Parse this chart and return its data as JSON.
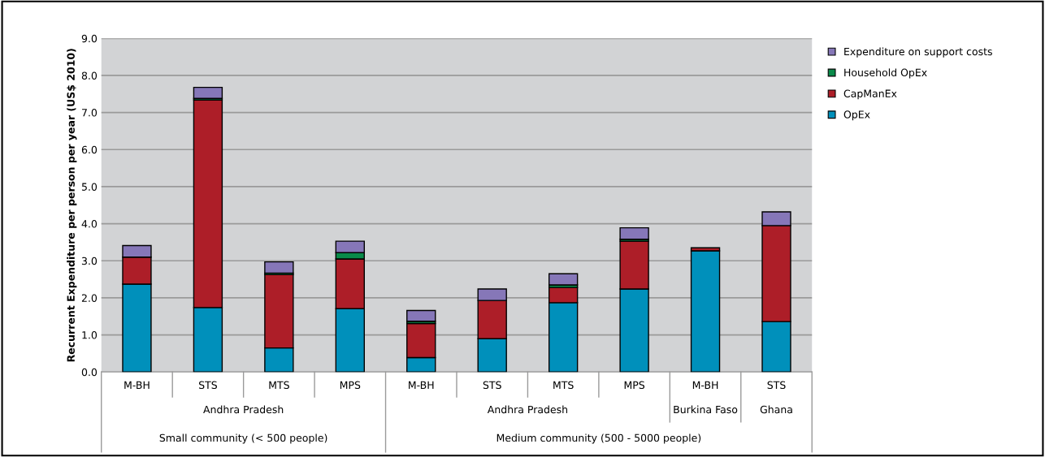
{
  "chart_data": {
    "type": "bar",
    "stacked": true,
    "ylabel": "Recurrent Expenditure per person per year (US$ 2010)",
    "categories": [
      "M-BH",
      "STS",
      "MTS",
      "MPS",
      "M-BH",
      "STS",
      "MTS",
      "MPS",
      "M-BH",
      "STS"
    ],
    "series": [
      {
        "name": "OpEx",
        "color": "#0090bb",
        "values": [
          2.37,
          1.74,
          0.65,
          1.71,
          0.39,
          0.9,
          1.87,
          2.24,
          3.27,
          1.36
        ]
      },
      {
        "name": "CapManEx",
        "color": "#ad1e28",
        "values": [
          0.73,
          5.6,
          1.98,
          1.34,
          0.92,
          1.03,
          0.41,
          1.29,
          0.08,
          2.59
        ]
      },
      {
        "name": "Household OpEx",
        "color": "#0a8a4a",
        "values": [
          null,
          0.04,
          0.04,
          0.17,
          0.06,
          null,
          0.07,
          0.05,
          null,
          null
        ]
      },
      {
        "name": "Expenditure on support costs",
        "color": "#8677b8",
        "values": [
          0.31,
          0.3,
          0.3,
          0.31,
          0.29,
          0.31,
          0.3,
          0.31,
          null,
          0.37
        ]
      }
    ],
    "ylim": [
      0,
      9
    ],
    "yticks": [
      {
        "value": 0,
        "label": "0.0"
      },
      {
        "value": 1,
        "label": "1.0"
      },
      {
        "value": 2,
        "label": "2.0"
      },
      {
        "value": 3,
        "label": "3.0"
      },
      {
        "value": 4,
        "label": "4.0"
      },
      {
        "value": 5,
        "label": "5.0"
      },
      {
        "value": 6,
        "label": "6.0"
      },
      {
        "value": 7,
        "label": "7.0"
      },
      {
        "value": 8,
        "label": "8.0"
      },
      {
        "value": 9,
        "label": "9.0"
      }
    ],
    "grid": "y",
    "legend": "right",
    "annotations": [
      "Andhra Pradesh",
      "Small community (< 500 people)",
      "Andhra Pradesh",
      "Burkina Faso",
      "Ghana",
      "Medium community (500 - 5000 people)"
    ]
  }
}
